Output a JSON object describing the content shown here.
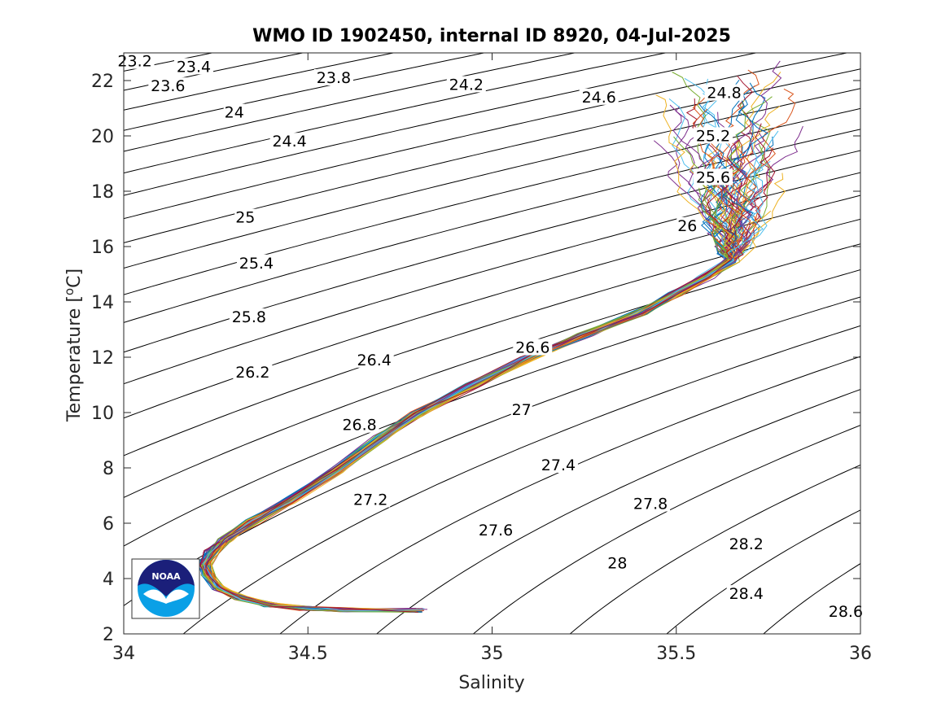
{
  "chart_data": {
    "type": "line",
    "title": "WMO ID 1902450, internal ID 8920, 04-Jul-2025",
    "xlabel": "Salinity",
    "ylabel": "Temperature [",
    "ylabel_sup": "o",
    "ylabel_end": "C]",
    "xlim": [
      34,
      36
    ],
    "ylim": [
      2,
      23
    ],
    "xticks": [
      34,
      34.5,
      35,
      35.5,
      36
    ],
    "xtick_labels": [
      "34",
      "34.5",
      "35",
      "35.5",
      "36"
    ],
    "yticks": [
      2,
      4,
      6,
      8,
      10,
      12,
      14,
      16,
      18,
      20,
      22
    ],
    "ytick_labels": [
      "2",
      "4",
      "6",
      "8",
      "10",
      "12",
      "14",
      "16",
      "18",
      "20",
      "22"
    ],
    "grid": false,
    "density_contours": {
      "levels": [
        23.2,
        23.4,
        23.6,
        23.8,
        24,
        24.2,
        24.4,
        24.6,
        24.8,
        25,
        25.2,
        25.4,
        25.6,
        25.8,
        26,
        26.2,
        26.4,
        26.6,
        26.8,
        27,
        27.2,
        27.4,
        27.6,
        27.8,
        28,
        28.2,
        28.4,
        28.6
      ],
      "labels": [
        {
          "text": "23.2",
          "s": 34.03,
          "t": 22.6
        },
        {
          "text": "23.4",
          "s": 34.19,
          "t": 22.4
        },
        {
          "text": "23.6",
          "s": 34.12,
          "t": 21.7
        },
        {
          "text": "23.8",
          "s": 34.57,
          "t": 22.0
        },
        {
          "text": "24",
          "s": 34.3,
          "t": 20.75
        },
        {
          "text": "24.2",
          "s": 34.93,
          "t": 21.75
        },
        {
          "text": "24.4",
          "s": 34.45,
          "t": 19.7
        },
        {
          "text": "24.6",
          "s": 35.29,
          "t": 21.3
        },
        {
          "text": "24.8",
          "s": 35.63,
          "t": 21.45
        },
        {
          "text": "25",
          "s": 34.33,
          "t": 16.95
        },
        {
          "text": "25.2",
          "s": 35.6,
          "t": 19.9
        },
        {
          "text": "25.4",
          "s": 34.36,
          "t": 15.3
        },
        {
          "text": "25.6",
          "s": 35.6,
          "t": 18.4
        },
        {
          "text": "25.8",
          "s": 34.34,
          "t": 13.35
        },
        {
          "text": "26",
          "s": 35.53,
          "t": 16.65
        },
        {
          "text": "26.2",
          "s": 34.35,
          "t": 11.35
        },
        {
          "text": "26.4",
          "s": 34.68,
          "t": 11.8
        },
        {
          "text": "26.6",
          "s": 35.11,
          "t": 12.25
        },
        {
          "text": "26.8",
          "s": 34.64,
          "t": 9.45
        },
        {
          "text": "27",
          "s": 35.08,
          "t": 10.0
        },
        {
          "text": "27.2",
          "s": 34.67,
          "t": 6.75
        },
        {
          "text": "27.4",
          "s": 35.18,
          "t": 8.0
        },
        {
          "text": "27.6",
          "s": 35.01,
          "t": 5.65
        },
        {
          "text": "27.8",
          "s": 35.43,
          "t": 6.6
        },
        {
          "text": "28",
          "s": 35.34,
          "t": 4.45
        },
        {
          "text": "28.2",
          "s": 35.69,
          "t": 5.15
        },
        {
          "text": "28.4",
          "s": 35.69,
          "t": 3.35
        },
        {
          "text": "28.6",
          "s": 35.96,
          "t": 2.7
        }
      ]
    },
    "series_note": "many overlapping float profiles",
    "profile_core": [
      [
        34.8,
        2.85
      ],
      [
        34.6,
        2.87
      ],
      [
        34.5,
        2.92
      ],
      [
        34.4,
        3.05
      ],
      [
        34.32,
        3.3
      ],
      [
        34.26,
        3.65
      ],
      [
        34.23,
        4.1
      ],
      [
        34.22,
        4.5
      ],
      [
        34.24,
        4.95
      ],
      [
        34.28,
        5.45
      ],
      [
        34.35,
        6.05
      ],
      [
        34.45,
        6.8
      ],
      [
        34.58,
        7.9
      ],
      [
        34.7,
        9.1
      ],
      [
        34.8,
        9.95
      ],
      [
        34.95,
        11.0
      ],
      [
        35.1,
        12.0
      ],
      [
        35.25,
        12.8
      ],
      [
        35.4,
        13.6
      ],
      [
        35.5,
        14.3
      ],
      [
        35.58,
        14.9
      ],
      [
        35.65,
        15.5
      ]
    ]
  },
  "logo": {
    "text": "NOAA"
  }
}
